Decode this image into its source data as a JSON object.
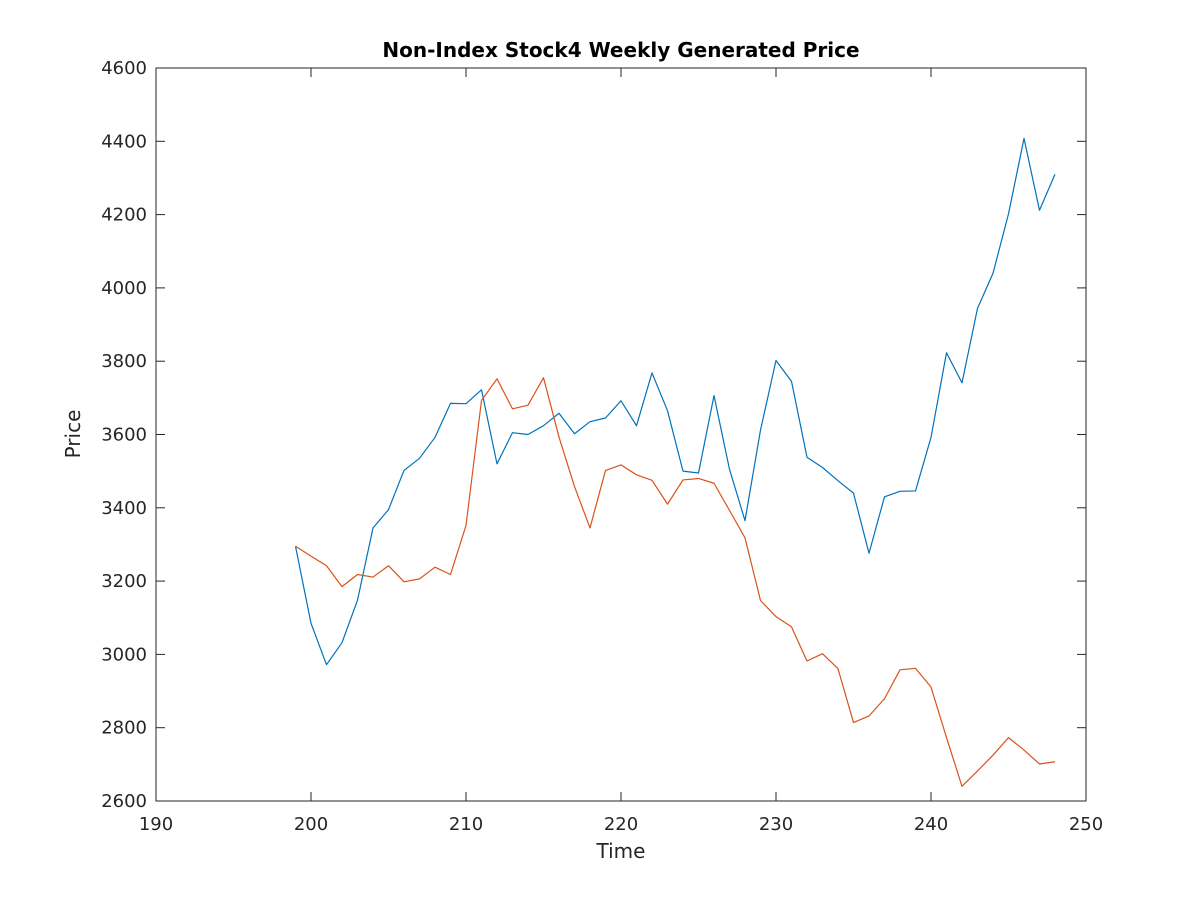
{
  "chart_data": {
    "type": "line",
    "title": "Non-Index Stock4 Weekly Generated Price",
    "xlabel": "Time",
    "ylabel": "Price",
    "xlim": [
      190,
      250
    ],
    "ylim": [
      2600,
      4600
    ],
    "xticks": [
      190,
      200,
      210,
      220,
      230,
      240,
      250
    ],
    "yticks": [
      2600,
      2800,
      3000,
      3200,
      3400,
      3600,
      3800,
      4000,
      4200,
      4400,
      4600
    ],
    "grid": false,
    "legend": "none",
    "x": [
      199,
      200,
      201,
      202,
      203,
      204,
      205,
      206,
      207,
      208,
      209,
      210,
      211,
      212,
      213,
      214,
      215,
      216,
      217,
      218,
      219,
      220,
      221,
      222,
      223,
      224,
      225,
      226,
      227,
      228,
      229,
      230,
      231,
      232,
      233,
      234,
      235,
      236,
      237,
      238,
      239,
      240,
      241,
      242,
      243,
      244,
      245,
      246,
      247,
      248
    ],
    "series": [
      {
        "color": "#0072BD",
        "values": [
          3295,
          3085,
          2972,
          3032,
          3148,
          3345,
          3395,
          3502,
          3535,
          3592,
          3685,
          3684,
          3722,
          3520,
          3605,
          3600,
          3624,
          3658,
          3602,
          3635,
          3645,
          3692,
          3624,
          3768,
          3665,
          3500,
          3495,
          3706,
          3505,
          3365,
          3612,
          3802,
          3745,
          3538,
          3510,
          3474,
          3440,
          3276,
          3430,
          3445,
          3446,
          3592,
          3823,
          3741,
          3944,
          4040,
          4202,
          4408,
          4212,
          4310
        ]
      },
      {
        "color": "#D95319",
        "values": [
          3295,
          3268,
          3242,
          3185,
          3218,
          3211,
          3242,
          3198,
          3206,
          3238,
          3218,
          3352,
          3693,
          3752,
          3670,
          3680,
          3755,
          3593,
          3458,
          3345,
          3502,
          3517,
          3490,
          3475,
          3410,
          3476,
          3480,
          3467,
          3393,
          3318,
          3147,
          3103,
          3075,
          2982,
          3002,
          2961,
          2814,
          2832,
          2879,
          2958,
          2962,
          2911,
          2773,
          2640,
          2682,
          2725,
          2773,
          2739,
          2701,
          2707
        ]
      }
    ]
  }
}
